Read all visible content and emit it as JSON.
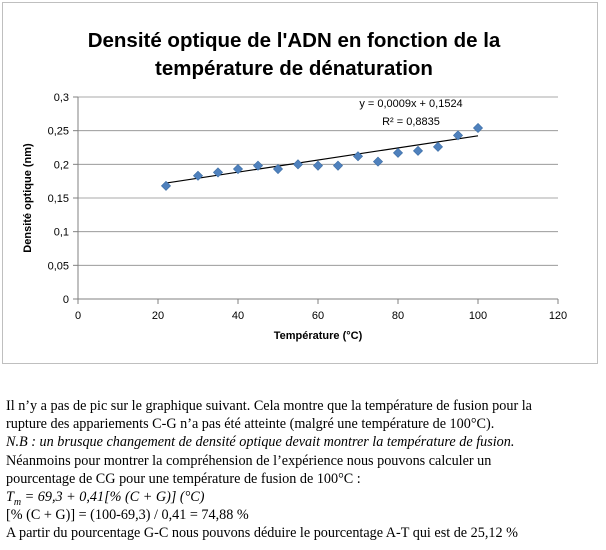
{
  "chart_data": {
    "type": "scatter",
    "title_line1": "Densité optique de l'ADN en fonction de la",
    "title_line2": "température de dénaturation",
    "xlabel": "Température (°C)",
    "ylabel": "Densité optique (nm)",
    "xlim": [
      0,
      120
    ],
    "ylim": [
      0,
      0.3
    ],
    "xticks": [
      0,
      20,
      40,
      60,
      80,
      100,
      120
    ],
    "yticks": [
      "0",
      "0,05",
      "0,1",
      "0,15",
      "0,2",
      "0,25",
      "0,3"
    ],
    "grid": "horizontal",
    "legend": "none",
    "marker_color": "#4f81bd",
    "trendline_color": "#000000",
    "points": [
      {
        "x": 22,
        "y": 0.168
      },
      {
        "x": 30,
        "y": 0.183
      },
      {
        "x": 35,
        "y": 0.188
      },
      {
        "x": 40,
        "y": 0.193
      },
      {
        "x": 45,
        "y": 0.198
      },
      {
        "x": 50,
        "y": 0.193
      },
      {
        "x": 55,
        "y": 0.2
      },
      {
        "x": 60,
        "y": 0.198
      },
      {
        "x": 65,
        "y": 0.198
      },
      {
        "x": 70,
        "y": 0.212
      },
      {
        "x": 75,
        "y": 0.204
      },
      {
        "x": 80,
        "y": 0.217
      },
      {
        "x": 85,
        "y": 0.22
      },
      {
        "x": 90,
        "y": 0.226
      },
      {
        "x": 95,
        "y": 0.243
      },
      {
        "x": 100,
        "y": 0.254
      }
    ],
    "trendline": {
      "slope": 0.0009,
      "intercept": 0.1524,
      "x_range": [
        22,
        100
      ]
    },
    "equation": "y = 0,0009x + 0,1524",
    "r_squared": "R² = 0,8835"
  },
  "text": {
    "p1_line1": "Il n’y a pas de pic sur le graphique suivant. Cela montre que la température de fusion pour la",
    "p1_line2": "rupture des appariements C-G n’a pas été atteinte (malgré une température de 100°C).",
    "nb_line": "N.B : un  brusque changement de densité optique devait montrer la température de fusion.",
    "p2_line1": "Néanmoins pour montrer la compréhension de l’expérience nous pouvons calculer un",
    "p2_line2": "pourcentage de CG pour une température de fusion de 100°C :",
    "formula_T": "T",
    "formula_sub": "m",
    "formula_rest": " = 69,3 + 0,41[% (C + G)] (°C)",
    "calc_line": "[% (C + G)] = (100-69,3) / 0,41 = 74,88 %",
    "conclusion": "A partir du pourcentage G-C nous pouvons déduire le pourcentage A-T qui est de 25,12 %"
  }
}
